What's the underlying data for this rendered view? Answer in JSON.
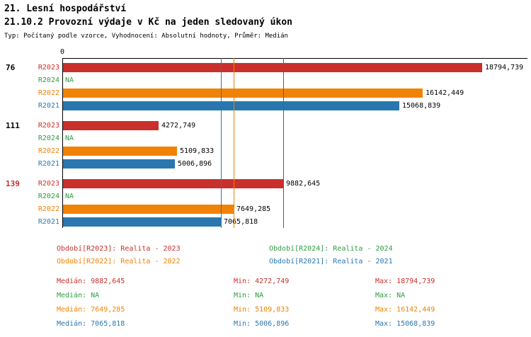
{
  "header": {
    "title1": "21. Lesní hospodářství",
    "title2": "21.10.2 Provozní výdaje v Kč na jeden sledovaný úkon",
    "meta": "Typ: Počítaný podle vzorce, Vyhodnocení: Absolutní hodnoty, Průměr: Medián"
  },
  "colors": {
    "R2023": "#c9302c",
    "R2024": "#2e9e3f",
    "R2022": "#f08306",
    "R2021": "#2a77b0"
  },
  "chart_data": {
    "type": "bar",
    "orientation": "horizontal",
    "x_origin_label": "0",
    "xlim": [
      0,
      20000
    ],
    "grid": "median-lines-only",
    "series_order": [
      "R2023",
      "R2024",
      "R2022",
      "R2021"
    ],
    "groups": [
      {
        "label": "76",
        "label_color": "#000000",
        "bars": [
          {
            "series": "R2023",
            "value": 18794.739,
            "display": "18794,739"
          },
          {
            "series": "R2024",
            "value": null,
            "display": "NA"
          },
          {
            "series": "R2022",
            "value": 16142.449,
            "display": "16142,449"
          },
          {
            "series": "R2021",
            "value": 15068.839,
            "display": "15068,839"
          }
        ]
      },
      {
        "label": "111",
        "label_color": "#000000",
        "bars": [
          {
            "series": "R2023",
            "value": 4272.749,
            "display": "4272,749"
          },
          {
            "series": "R2024",
            "value": null,
            "display": "NA"
          },
          {
            "series": "R2022",
            "value": 5109.833,
            "display": "5109,833"
          },
          {
            "series": "R2021",
            "value": 5006.896,
            "display": "5006,896"
          }
        ]
      },
      {
        "label": "139",
        "label_color": "#c9302c",
        "bars": [
          {
            "series": "R2023",
            "value": 9882.645,
            "display": "9882,645"
          },
          {
            "series": "R2024",
            "value": null,
            "display": "NA"
          },
          {
            "series": "R2022",
            "value": 7649.285,
            "display": "7649,285"
          },
          {
            "series": "R2021",
            "value": 7065.818,
            "display": "7065,818"
          }
        ]
      }
    ],
    "median_lines": [
      {
        "series": "R2021",
        "value": 7065.818,
        "color": "#2a77b0"
      },
      {
        "series": "R2022",
        "value": 7649.285,
        "color": "#f08306"
      },
      {
        "series": "R2023",
        "value": 9882.645,
        "color": "#c9302c"
      }
    ]
  },
  "legend": [
    {
      "series": "R2023",
      "label": "Období[R2023]: Realita - 2023",
      "color": "#c9302c"
    },
    {
      "series": "R2024",
      "label": "Období[R2024]: Realita - 2024",
      "color": "#2e9e3f"
    },
    {
      "series": "R2022",
      "label": "Období[R2022]: Realita - 2022",
      "color": "#f08306"
    },
    {
      "series": "R2021",
      "label": "Období[R2021]: Realita - 2021",
      "color": "#2a77b0"
    }
  ],
  "stats": [
    {
      "series": "R2023",
      "color": "#c9302c",
      "median": "Medián: 9882,645",
      "min": "Min: 4272,749",
      "max": "Max: 18794,739"
    },
    {
      "series": "R2024",
      "color": "#2e9e3f",
      "median": "Medián: NA",
      "min": "Min: NA",
      "max": "Max: NA"
    },
    {
      "series": "R2022",
      "color": "#f08306",
      "median": "Medián: 7649,285",
      "min": "Min: 5109,833",
      "max": "Max: 16142,449"
    },
    {
      "series": "R2021",
      "color": "#2a77b0",
      "median": "Medián: 7065,818",
      "min": "Min: 5006,896",
      "max": "Max: 15068,839"
    }
  ]
}
